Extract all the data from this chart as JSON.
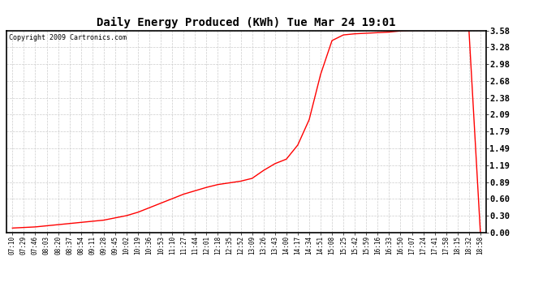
{
  "title": "Daily Energy Produced (KWh) Tue Mar 24 19:01",
  "copyright": "Copyright 2009 Cartronics.com",
  "line_color": "#ff0000",
  "background_color": "#ffffff",
  "grid_color": "#cccccc",
  "yticks": [
    0.0,
    0.3,
    0.6,
    0.89,
    1.19,
    1.49,
    1.79,
    2.09,
    2.38,
    2.68,
    2.98,
    3.28,
    3.58
  ],
  "ylim": [
    0.0,
    3.58
  ],
  "xtick_labels": [
    "07:10",
    "07:29",
    "07:46",
    "08:03",
    "08:20",
    "08:37",
    "08:54",
    "09:11",
    "09:28",
    "09:45",
    "10:02",
    "10:19",
    "10:36",
    "10:53",
    "11:10",
    "11:27",
    "11:44",
    "12:01",
    "12:18",
    "12:35",
    "12:52",
    "13:09",
    "13:26",
    "13:43",
    "14:00",
    "14:17",
    "14:34",
    "14:51",
    "15:08",
    "15:25",
    "15:42",
    "15:59",
    "16:16",
    "16:33",
    "16:50",
    "17:07",
    "17:24",
    "17:41",
    "17:58",
    "18:15",
    "18:32",
    "18:58"
  ],
  "curve_y": [
    0.08,
    0.09,
    0.1,
    0.12,
    0.14,
    0.16,
    0.18,
    0.2,
    0.22,
    0.26,
    0.3,
    0.36,
    0.44,
    0.52,
    0.6,
    0.68,
    0.74,
    0.8,
    0.85,
    0.88,
    0.91,
    0.96,
    1.1,
    1.22,
    1.3,
    1.55,
    2.0,
    2.8,
    3.4,
    3.5,
    3.52,
    3.53,
    3.54,
    3.55,
    3.57,
    3.58,
    3.58,
    3.58,
    3.58,
    3.58,
    3.58,
    0.0
  ],
  "title_fontsize": 10,
  "copyright_fontsize": 6,
  "xtick_fontsize": 5.5,
  "ytick_fontsize": 7.5
}
